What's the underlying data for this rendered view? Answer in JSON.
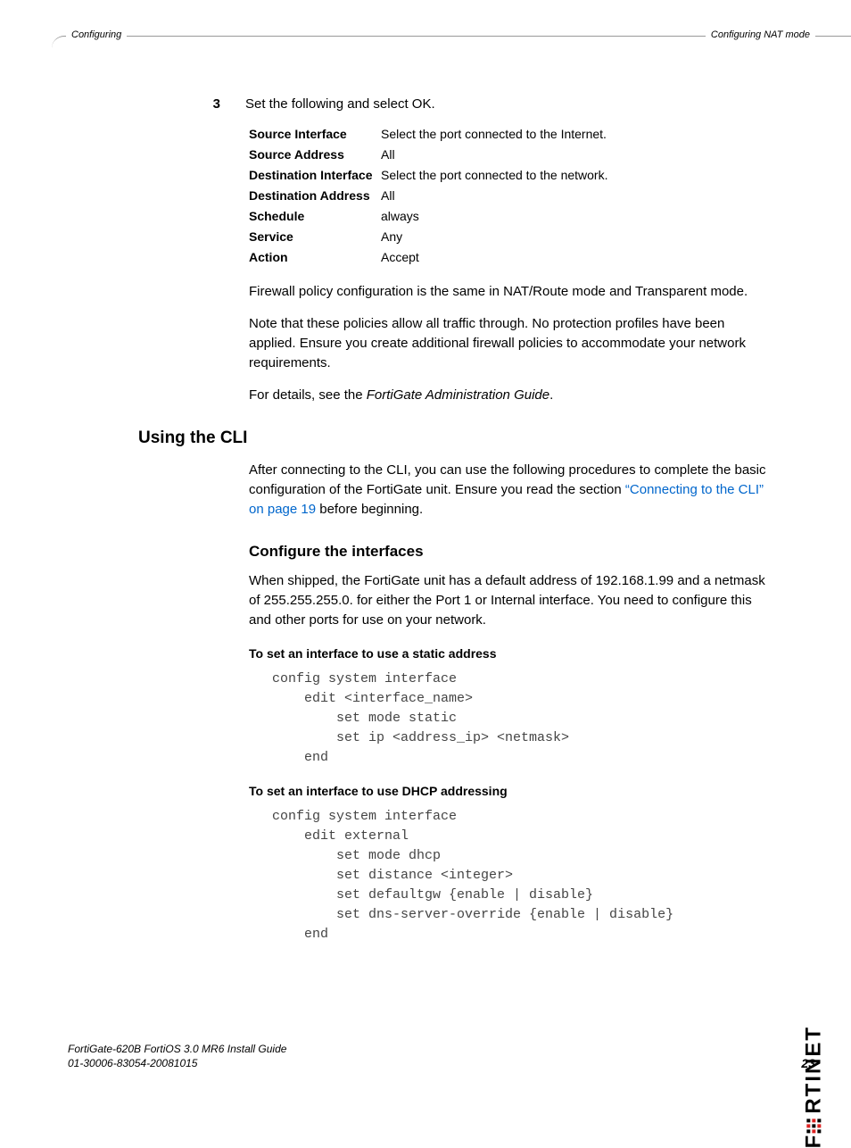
{
  "header": {
    "left": "Configuring",
    "right": "Configuring NAT mode"
  },
  "step": {
    "num": "3",
    "text": "Set the following and select OK."
  },
  "properties": [
    {
      "label": "Source Interface",
      "value": "Select the port connected to the Internet."
    },
    {
      "label": "Source Address",
      "value": "All"
    },
    {
      "label": "Destination Interface",
      "value": "Select the port connected to the network."
    },
    {
      "label": "Destination Address",
      "value": "All"
    },
    {
      "label": "Schedule",
      "value": "always"
    },
    {
      "label": "Service",
      "value": "Any"
    },
    {
      "label": "Action",
      "value": "Accept"
    }
  ],
  "para1": "Firewall policy configuration is the same in NAT/Route mode and Transparent mode.",
  "para2": "Note that these policies allow all traffic through. No protection profiles have been applied. Ensure you create additional firewall policies to accommodate your network requirements.",
  "para3_pre": "For details, see the ",
  "para3_italic": "FortiGate Administration Guide",
  "para3_post": ".",
  "h2": "Using the CLI",
  "para4_pre": "After connecting to the CLI, you can use the following procedures to complete the basic configuration of the FortiGate unit. Ensure you read the section ",
  "para4_link": "“Connecting to the CLI” on page 19",
  "para4_post": " before beginning.",
  "h3": "Configure the interfaces",
  "para5": "When shipped, the FortiGate unit has a default address of 192.168.1.99 and a netmask of 255.255.255.0. for either the Port 1 or Internal interface. You need to configure this and other ports for use on your network.",
  "sub1": "To set an interface to use a static address",
  "code1": "config system interface\n    edit <interface_name>\n        set mode static\n        set ip <address_ip> <netmask>\n    end",
  "sub2": "To set an interface to use DHCP addressing",
  "code2": "config system interface\n    edit external\n        set mode dhcp\n        set distance <integer>\n        set defaultgw {enable | disable}\n        set dns-server-override {enable | disable}\n    end",
  "footer": {
    "line1": "FortiGate-620B FortiOS 3.0 MR6 Install Guide",
    "line2": "01-30006-83054-20081015",
    "page": "23"
  },
  "logo": {
    "text": "RTINET",
    "prefix": "F"
  },
  "colors": {
    "link": "#0066cc",
    "text": "#000000",
    "code": "#444444",
    "red": "#d22222",
    "rule": "#999999"
  }
}
